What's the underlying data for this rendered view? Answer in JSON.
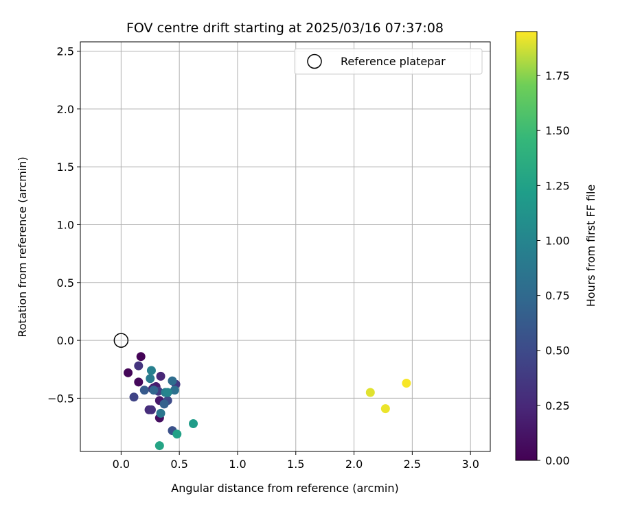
{
  "chart_data": {
    "type": "scatter",
    "title": "FOV centre drift starting at 2025/03/16 07:37:08",
    "xlabel": "Angular distance from reference (arcmin)",
    "ylabel": "Rotation from reference (arcmin)",
    "xlim": [
      -0.35,
      3.17
    ],
    "ylim": [
      -0.96,
      2.58
    ],
    "xticks": [
      0.0,
      0.5,
      1.0,
      1.5,
      2.0,
      2.5,
      3.0
    ],
    "xtick_labels": [
      "0.0",
      "0.5",
      "1.0",
      "1.5",
      "2.0",
      "2.5",
      "3.0"
    ],
    "yticks": [
      -0.5,
      0.0,
      0.5,
      1.0,
      1.5,
      2.0,
      2.5
    ],
    "ytick_labels": [
      "−0.5",
      "0.0",
      "0.5",
      "1.0",
      "1.5",
      "2.0",
      "2.5"
    ],
    "grid": true,
    "legend": {
      "placement": "top-right",
      "entries": [
        {
          "label": "Reference platepar",
          "marker": "open-circle"
        }
      ]
    },
    "reference_point": {
      "x": 0.0,
      "y": 0.0
    },
    "colorbar": {
      "label": "Hours from first FF file",
      "colormap": "viridis",
      "range": [
        0.0,
        1.95
      ],
      "ticks": [
        0.0,
        0.25,
        0.5,
        0.75,
        1.0,
        1.25,
        1.5,
        1.75
      ],
      "tick_labels": [
        "0.00",
        "0.25",
        "0.50",
        "0.75",
        "1.00",
        "1.25",
        "1.50",
        "1.75"
      ]
    },
    "points": [
      {
        "x": 0.17,
        "y": -0.14,
        "c": 0.02
      },
      {
        "x": 0.06,
        "y": -0.28,
        "c": 0.03
      },
      {
        "x": 0.15,
        "y": -0.36,
        "c": 0.05
      },
      {
        "x": 0.33,
        "y": -0.67,
        "c": 0.08
      },
      {
        "x": 0.28,
        "y": -0.41,
        "c": 0.12
      },
      {
        "x": 0.33,
        "y": -0.52,
        "c": 0.14
      },
      {
        "x": 0.3,
        "y": -0.4,
        "c": 0.18
      },
      {
        "x": 0.27,
        "y": -0.42,
        "c": 0.21
      },
      {
        "x": 0.34,
        "y": -0.31,
        "c": 0.24
      },
      {
        "x": 0.24,
        "y": -0.6,
        "c": 0.27
      },
      {
        "x": 0.26,
        "y": -0.6,
        "c": 0.3
      },
      {
        "x": 0.15,
        "y": -0.22,
        "c": 0.33
      },
      {
        "x": 0.47,
        "y": -0.38,
        "c": 0.36
      },
      {
        "x": 0.32,
        "y": -0.44,
        "c": 0.4
      },
      {
        "x": 0.11,
        "y": -0.49,
        "c": 0.45
      },
      {
        "x": 0.4,
        "y": -0.52,
        "c": 0.5
      },
      {
        "x": 0.44,
        "y": -0.78,
        "c": 0.55
      },
      {
        "x": 0.2,
        "y": -0.43,
        "c": 0.62
      },
      {
        "x": 0.37,
        "y": -0.55,
        "c": 0.68
      },
      {
        "x": 0.28,
        "y": -0.43,
        "c": 0.72
      },
      {
        "x": 0.44,
        "y": -0.35,
        "c": 0.78
      },
      {
        "x": 0.46,
        "y": -0.43,
        "c": 0.82
      },
      {
        "x": 0.34,
        "y": -0.63,
        "c": 0.86
      },
      {
        "x": 0.25,
        "y": -0.33,
        "c": 0.9
      },
      {
        "x": 0.38,
        "y": -0.45,
        "c": 0.93
      },
      {
        "x": 0.26,
        "y": -0.26,
        "c": 0.96
      },
      {
        "x": 0.4,
        "y": -0.45,
        "c": 1.0
      },
      {
        "x": 0.62,
        "y": -0.72,
        "c": 1.2
      },
      {
        "x": 0.48,
        "y": -0.81,
        "c": 1.25
      },
      {
        "x": 0.33,
        "y": -0.91,
        "c": 1.28
      },
      {
        "x": 2.14,
        "y": -0.45,
        "c": 1.9
      },
      {
        "x": 2.27,
        "y": -0.59,
        "c": 1.92
      },
      {
        "x": 2.45,
        "y": -0.37,
        "c": 1.94
      }
    ]
  }
}
